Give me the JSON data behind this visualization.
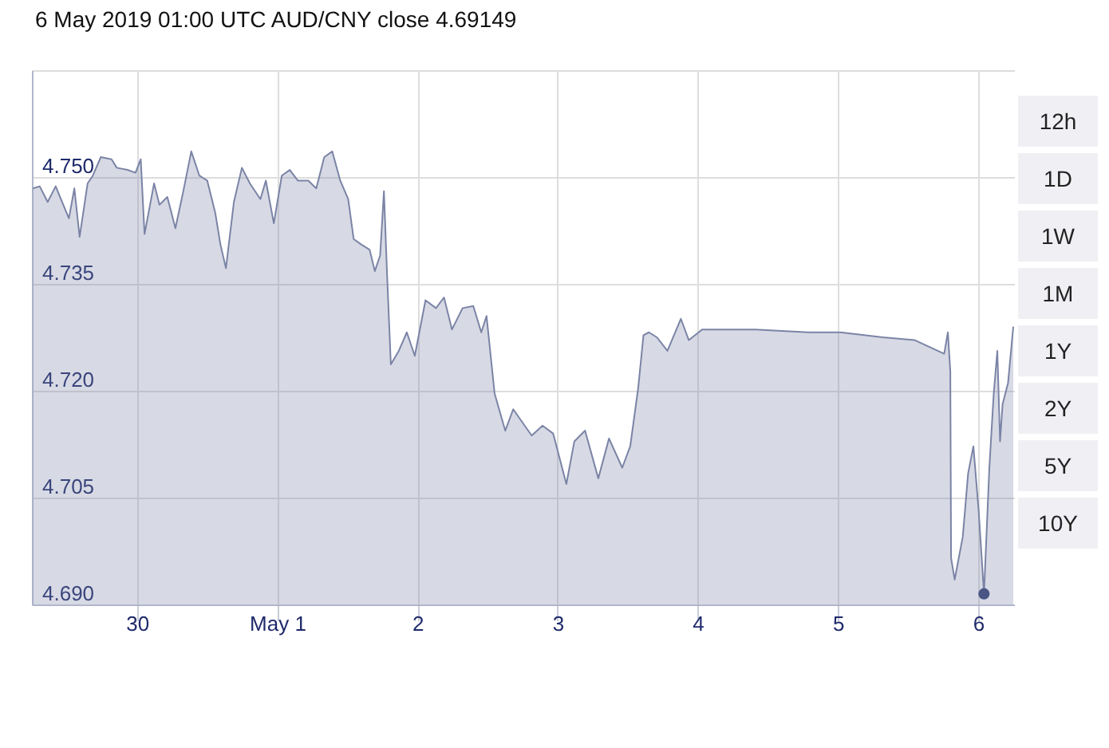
{
  "chart_data": {
    "type": "area",
    "title": "6 May 2019 01:00 UTC  AUD/CNY close 4.69149",
    "annotations": [
      "12h",
      "1D",
      "1W",
      "1M",
      "1Y",
      "2Y",
      "5Y",
      "10Y"
    ],
    "xlim": [
      "2019-04-29T06:00",
      "2019-05-06T06:17"
    ],
    "xticks": [
      {
        "value": "2019-04-30",
        "label": "30"
      },
      {
        "value": "2019-05-01",
        "label": "May 1"
      },
      {
        "value": "2019-05-02",
        "label": "2"
      },
      {
        "value": "2019-05-03",
        "label": "3"
      },
      {
        "value": "2019-05-04",
        "label": "4"
      },
      {
        "value": "2019-05-05",
        "label": "5"
      },
      {
        "value": "2019-05-06",
        "label": "6"
      }
    ],
    "ylim": [
      4.69,
      4.765
    ],
    "yticks": [
      {
        "value": 4.69,
        "label": "4.690"
      },
      {
        "value": 4.705,
        "label": "4.705"
      },
      {
        "value": 4.72,
        "label": "4.720"
      },
      {
        "value": 4.735,
        "label": "4.735"
      },
      {
        "value": 4.75,
        "label": "4.750"
      }
    ],
    "grid": true,
    "series": [
      {
        "color": "#7b84a6",
        "x": [
          "2019-04-29T06:10",
          "2019-04-29T07:20",
          "2019-04-29T08:42",
          "2019-04-29T10:04",
          "2019-04-29T10:58",
          "2019-04-29T12:20",
          "2019-04-29T13:16",
          "2019-04-29T14:10",
          "2019-04-29T15:32",
          "2019-04-29T16:26",
          "2019-04-29T17:48",
          "2019-04-29T19:38",
          "2019-04-29T20:32",
          "2019-04-29T22:22",
          "2019-04-29T23:44",
          "2019-04-30T00:38",
          "2019-04-30T01:17",
          "2019-04-30T02:55",
          "2019-04-30T03:50",
          "2019-04-30T05:11",
          "2019-04-30T06:34",
          "2019-04-30T07:55",
          "2019-04-30T09:17",
          "2019-04-30T10:40",
          "2019-04-30T12:01",
          "2019-04-30T13:23",
          "2019-04-30T14:17",
          "2019-04-30T15:13",
          "2019-04-30T16:35",
          "2019-04-30T17:57",
          "2019-04-30T19:19",
          "2019-04-30T21:07",
          "2019-04-30T22:03",
          "2019-04-30T23:25",
          "2019-05-01T00:47",
          "2019-05-01T02:09",
          "2019-05-01T03:31",
          "2019-05-01T05:19",
          "2019-05-01T06:41",
          "2019-05-01T08:03",
          "2019-05-01T09:25",
          "2019-05-01T10:47",
          "2019-05-01T12:09",
          "2019-05-01T13:05",
          "2019-05-01T14:27",
          "2019-05-01T15:49",
          "2019-05-01T16:43",
          "2019-05-01T17:37",
          "2019-05-01T18:16",
          "2019-05-01T18:49",
          "2019-05-01T19:27",
          "2019-05-01T20:49",
          "2019-05-01T22:11",
          "2019-05-01T23:33",
          "2019-05-02T01:23",
          "2019-05-02T03:11",
          "2019-05-02T04:33",
          "2019-05-02T05:55",
          "2019-05-02T07:44",
          "2019-05-02T09:34",
          "2019-05-02T10:56",
          "2019-05-02T11:50",
          "2019-05-02T12:44",
          "2019-05-02T13:13",
          "2019-05-02T15:02",
          "2019-05-02T16:24",
          "2019-05-02T19:34",
          "2019-05-02T21:25",
          "2019-05-02T23:14",
          "2019-05-03T01:30",
          "2019-05-03T02:52",
          "2019-05-03T04:42",
          "2019-05-03T06:58",
          "2019-05-03T08:48",
          "2019-05-03T11:04",
          "2019-05-03T12:26",
          "2019-05-03T13:48",
          "2019-05-03T14:42",
          "2019-05-03T15:38",
          "2019-05-03T17:00",
          "2019-05-03T18:48",
          "2019-05-03T21:06",
          "2019-05-03T22:28",
          "2019-05-04T00:44",
          "2019-05-04T09:50",
          "2019-05-04T18:58",
          "2019-05-05T00:26",
          "2019-05-05T07:42",
          "2019-05-05T13:10",
          "2019-05-05T18:11",
          "2019-05-05T18:49",
          "2019-05-05T19:14",
          "2019-05-05T19:22",
          "2019-05-05T19:59",
          "2019-05-05T21:22",
          "2019-05-05T22:17",
          "2019-05-05T23:11",
          "2019-05-06T00:05",
          "2019-05-06T01:00",
          "2019-05-06T01:55",
          "2019-05-06T02:40",
          "2019-05-06T03:17",
          "2019-05-06T03:45",
          "2019-05-06T04:11",
          "2019-05-06T05:07",
          "2019-05-06T06:01"
        ],
        "values": [
          4.7484,
          4.7487,
          4.7465,
          4.7487,
          4.7469,
          4.7442,
          4.7484,
          4.7416,
          4.7491,
          4.7502,
          4.7528,
          4.7525,
          4.7513,
          4.751,
          4.7506,
          4.7525,
          4.742,
          4.7491,
          4.7461,
          4.7472,
          4.7428,
          4.748,
          4.7536,
          4.7502,
          4.7495,
          4.745,
          4.7405,
          4.7372,
          4.7465,
          4.7513,
          4.7491,
          4.7469,
          4.7495,
          4.7435,
          4.7502,
          4.751,
          4.7495,
          4.7495,
          4.7484,
          4.7528,
          4.7536,
          4.7495,
          4.7469,
          4.7413,
          4.7405,
          4.7398,
          4.7368,
          4.739,
          4.748,
          4.7361,
          4.7237,
          4.7256,
          4.7282,
          4.7249,
          4.7327,
          4.7316,
          4.7331,
          4.7286,
          4.7316,
          4.7319,
          4.7282,
          4.7305,
          4.7234,
          4.7196,
          4.7144,
          4.7174,
          4.7137,
          4.7151,
          4.714,
          4.7069,
          4.7129,
          4.7144,
          4.7077,
          4.7133,
          4.7092,
          4.7122,
          4.7204,
          4.7278,
          4.7282,
          4.7275,
          4.7256,
          4.7301,
          4.7271,
          4.7286,
          4.7286,
          4.7282,
          4.7282,
          4.7275,
          4.7271,
          4.7252,
          4.7282,
          4.7227,
          4.6965,
          4.6935,
          4.6995,
          4.7084,
          4.7122,
          4.7032,
          4.69149,
          4.7092,
          4.7196,
          4.7256,
          4.7129,
          4.7181,
          4.7211,
          4.729
        ]
      },
      {
        "type": "scatter",
        "color": "#4a5584",
        "x": [
          "2019-05-06T01:00"
        ],
        "values": [
          4.69149
        ]
      }
    ]
  }
}
